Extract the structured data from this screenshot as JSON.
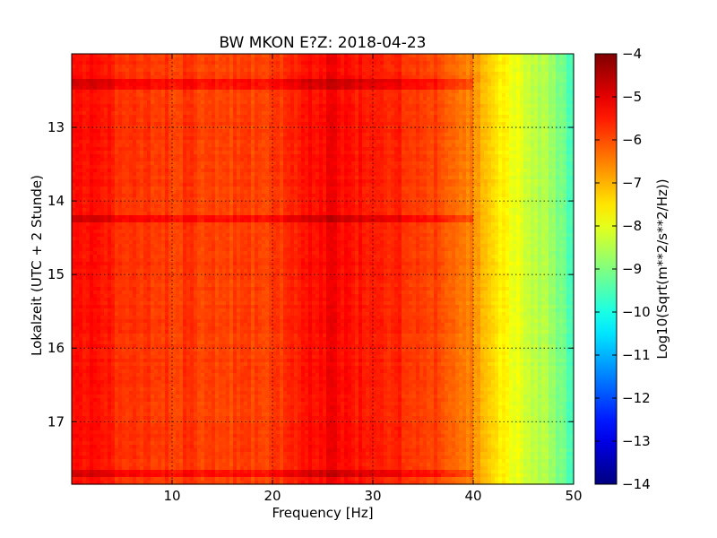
{
  "chart_data": {
    "type": "heatmap",
    "title": "BW MKON E?Z: 2018-04-23",
    "xlabel": "Frequency [Hz]",
    "ylabel": "Lokalzeit (UTC + 2 Stunde)",
    "xlim": [
      0,
      50
    ],
    "ylim": [
      12.0,
      17.85
    ],
    "y_inverted": true,
    "x_ticks": [
      10,
      20,
      30,
      40,
      50
    ],
    "x_tick_labels": [
      "10",
      "20",
      "30",
      "40",
      "50"
    ],
    "y_ticks": [
      13,
      14,
      15,
      16,
      17
    ],
    "y_tick_labels": [
      "13",
      "14",
      "15",
      "16",
      "17"
    ],
    "grid": true,
    "colormap": "jet",
    "colorbar": {
      "label": "Log10(Sqrt(m**2/s**2/Hz))",
      "range": [
        -14,
        -4
      ],
      "ticks": [
        -4,
        -5,
        -6,
        -7,
        -8,
        -9,
        -10,
        -11,
        -12,
        -13,
        -14
      ],
      "tick_labels": [
        "−4",
        "−5",
        "−6",
        "−7",
        "−8",
        "−9",
        "−10",
        "−11",
        "−12",
        "−13",
        "−14"
      ]
    },
    "spectrum_profile": {
      "frequency_hz": [
        0,
        2,
        5,
        8,
        12,
        16,
        20,
        24,
        26,
        28,
        30,
        33,
        36,
        38,
        40,
        42,
        44,
        46,
        48,
        50
      ],
      "log_amplitude": [
        -5.4,
        -5.3,
        -5.7,
        -5.8,
        -5.8,
        -5.9,
        -5.9,
        -5.3,
        -5.2,
        -5.4,
        -5.4,
        -5.6,
        -5.9,
        -6.1,
        -6.6,
        -7.3,
        -7.9,
        -8.3,
        -8.8,
        -9.6
      ]
    },
    "strong_bands": [
      {
        "time": 17.7,
        "log_amplitude": -5.0
      },
      {
        "time": 14.23,
        "log_amplitude": -5.2
      },
      {
        "time": 12.42,
        "log_amplitude": -5.6
      }
    ]
  }
}
